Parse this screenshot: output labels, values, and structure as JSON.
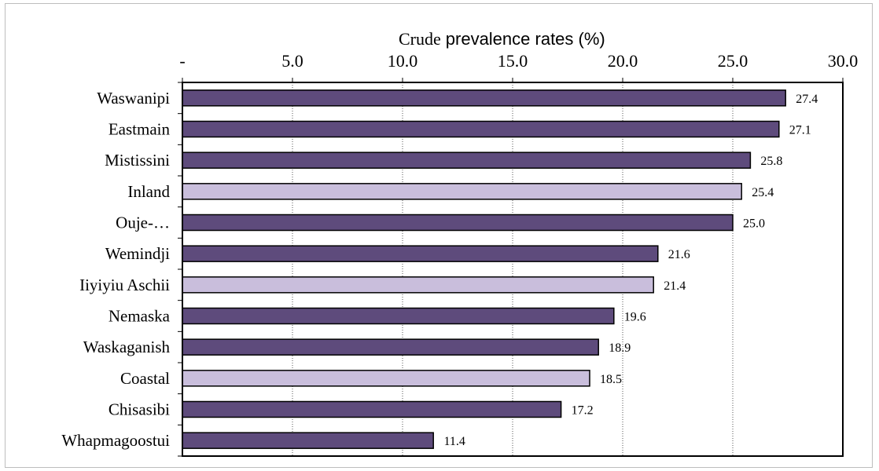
{
  "chart_data": {
    "type": "bar",
    "orientation": "horizontal",
    "xlabel_parts": [
      "Crude",
      "prevalence rates (%)"
    ],
    "ylabel": "",
    "tick_labels": [
      "-",
      "5.0",
      "10.0",
      "15.0",
      "20.0",
      "25.0",
      "30.0"
    ],
    "xlim": [
      0,
      30
    ],
    "grid": "vertical dotted",
    "data_labels": true,
    "categories": [
      "Waswanipi",
      "Eastmain",
      "Mistissini",
      "Inland",
      "Ouje-…",
      "Wemindji",
      "Iiyiyiu Aschii",
      "Nemaska",
      "Waskaganish",
      "Coastal",
      "Chisasibi",
      "Whapmagoostui"
    ],
    "values": [
      27.4,
      27.1,
      25.8,
      25.4,
      25.0,
      21.6,
      21.4,
      19.6,
      18.9,
      18.5,
      17.2,
      11.4
    ],
    "value_labels": [
      "27.4",
      "27.1",
      "25.8",
      "25.4",
      "25.0",
      "21.6",
      "21.4",
      "19.6",
      "18.9",
      "18.5",
      "17.2",
      "11.4"
    ],
    "bar_kinds": [
      "community",
      "community",
      "community",
      "region",
      "community",
      "community",
      "region",
      "community",
      "community",
      "region",
      "community",
      "community"
    ],
    "colors": {
      "community": "#5e4b7c",
      "region": "#c9bedc",
      "outline": "#000000",
      "grid": "#555555"
    }
  }
}
